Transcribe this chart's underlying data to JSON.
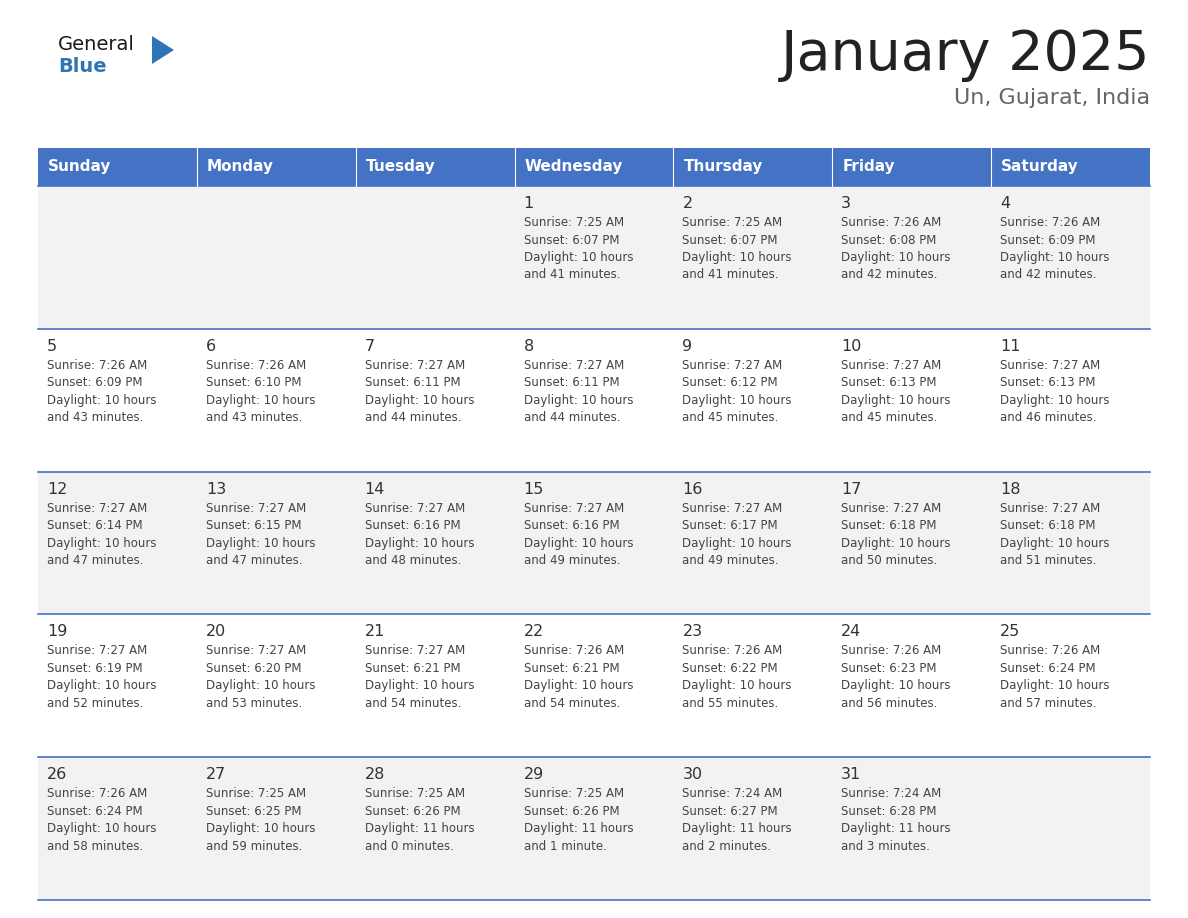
{
  "title": "January 2025",
  "subtitle": "Un, Gujarat, India",
  "header_bg_color": "#4472C4",
  "header_text_color": "#FFFFFF",
  "header_font_size": 11,
  "day_names": [
    "Sunday",
    "Monday",
    "Tuesday",
    "Wednesday",
    "Thursday",
    "Friday",
    "Saturday"
  ],
  "row_bg_even": "#FFFFFF",
  "row_bg_odd": "#F2F2F2",
  "cell_border_color": "#4472C4",
  "title_color": "#222222",
  "subtitle_color": "#666666",
  "number_color": "#333333",
  "text_color": "#444444",
  "weeks": [
    [
      {
        "day": null,
        "info": null
      },
      {
        "day": null,
        "info": null
      },
      {
        "day": null,
        "info": null
      },
      {
        "day": 1,
        "info": "Sunrise: 7:25 AM\nSunset: 6:07 PM\nDaylight: 10 hours\nand 41 minutes."
      },
      {
        "day": 2,
        "info": "Sunrise: 7:25 AM\nSunset: 6:07 PM\nDaylight: 10 hours\nand 41 minutes."
      },
      {
        "day": 3,
        "info": "Sunrise: 7:26 AM\nSunset: 6:08 PM\nDaylight: 10 hours\nand 42 minutes."
      },
      {
        "day": 4,
        "info": "Sunrise: 7:26 AM\nSunset: 6:09 PM\nDaylight: 10 hours\nand 42 minutes."
      }
    ],
    [
      {
        "day": 5,
        "info": "Sunrise: 7:26 AM\nSunset: 6:09 PM\nDaylight: 10 hours\nand 43 minutes."
      },
      {
        "day": 6,
        "info": "Sunrise: 7:26 AM\nSunset: 6:10 PM\nDaylight: 10 hours\nand 43 minutes."
      },
      {
        "day": 7,
        "info": "Sunrise: 7:27 AM\nSunset: 6:11 PM\nDaylight: 10 hours\nand 44 minutes."
      },
      {
        "day": 8,
        "info": "Sunrise: 7:27 AM\nSunset: 6:11 PM\nDaylight: 10 hours\nand 44 minutes."
      },
      {
        "day": 9,
        "info": "Sunrise: 7:27 AM\nSunset: 6:12 PM\nDaylight: 10 hours\nand 45 minutes."
      },
      {
        "day": 10,
        "info": "Sunrise: 7:27 AM\nSunset: 6:13 PM\nDaylight: 10 hours\nand 45 minutes."
      },
      {
        "day": 11,
        "info": "Sunrise: 7:27 AM\nSunset: 6:13 PM\nDaylight: 10 hours\nand 46 minutes."
      }
    ],
    [
      {
        "day": 12,
        "info": "Sunrise: 7:27 AM\nSunset: 6:14 PM\nDaylight: 10 hours\nand 47 minutes."
      },
      {
        "day": 13,
        "info": "Sunrise: 7:27 AM\nSunset: 6:15 PM\nDaylight: 10 hours\nand 47 minutes."
      },
      {
        "day": 14,
        "info": "Sunrise: 7:27 AM\nSunset: 6:16 PM\nDaylight: 10 hours\nand 48 minutes."
      },
      {
        "day": 15,
        "info": "Sunrise: 7:27 AM\nSunset: 6:16 PM\nDaylight: 10 hours\nand 49 minutes."
      },
      {
        "day": 16,
        "info": "Sunrise: 7:27 AM\nSunset: 6:17 PM\nDaylight: 10 hours\nand 49 minutes."
      },
      {
        "day": 17,
        "info": "Sunrise: 7:27 AM\nSunset: 6:18 PM\nDaylight: 10 hours\nand 50 minutes."
      },
      {
        "day": 18,
        "info": "Sunrise: 7:27 AM\nSunset: 6:18 PM\nDaylight: 10 hours\nand 51 minutes."
      }
    ],
    [
      {
        "day": 19,
        "info": "Sunrise: 7:27 AM\nSunset: 6:19 PM\nDaylight: 10 hours\nand 52 minutes."
      },
      {
        "day": 20,
        "info": "Sunrise: 7:27 AM\nSunset: 6:20 PM\nDaylight: 10 hours\nand 53 minutes."
      },
      {
        "day": 21,
        "info": "Sunrise: 7:27 AM\nSunset: 6:21 PM\nDaylight: 10 hours\nand 54 minutes."
      },
      {
        "day": 22,
        "info": "Sunrise: 7:26 AM\nSunset: 6:21 PM\nDaylight: 10 hours\nand 54 minutes."
      },
      {
        "day": 23,
        "info": "Sunrise: 7:26 AM\nSunset: 6:22 PM\nDaylight: 10 hours\nand 55 minutes."
      },
      {
        "day": 24,
        "info": "Sunrise: 7:26 AM\nSunset: 6:23 PM\nDaylight: 10 hours\nand 56 minutes."
      },
      {
        "day": 25,
        "info": "Sunrise: 7:26 AM\nSunset: 6:24 PM\nDaylight: 10 hours\nand 57 minutes."
      }
    ],
    [
      {
        "day": 26,
        "info": "Sunrise: 7:26 AM\nSunset: 6:24 PM\nDaylight: 10 hours\nand 58 minutes."
      },
      {
        "day": 27,
        "info": "Sunrise: 7:25 AM\nSunset: 6:25 PM\nDaylight: 10 hours\nand 59 minutes."
      },
      {
        "day": 28,
        "info": "Sunrise: 7:25 AM\nSunset: 6:26 PM\nDaylight: 11 hours\nand 0 minutes."
      },
      {
        "day": 29,
        "info": "Sunrise: 7:25 AM\nSunset: 6:26 PM\nDaylight: 11 hours\nand 1 minute."
      },
      {
        "day": 30,
        "info": "Sunrise: 7:24 AM\nSunset: 6:27 PM\nDaylight: 11 hours\nand 2 minutes."
      },
      {
        "day": 31,
        "info": "Sunrise: 7:24 AM\nSunset: 6:28 PM\nDaylight: 11 hours\nand 3 minutes."
      },
      {
        "day": null,
        "info": null
      }
    ]
  ]
}
